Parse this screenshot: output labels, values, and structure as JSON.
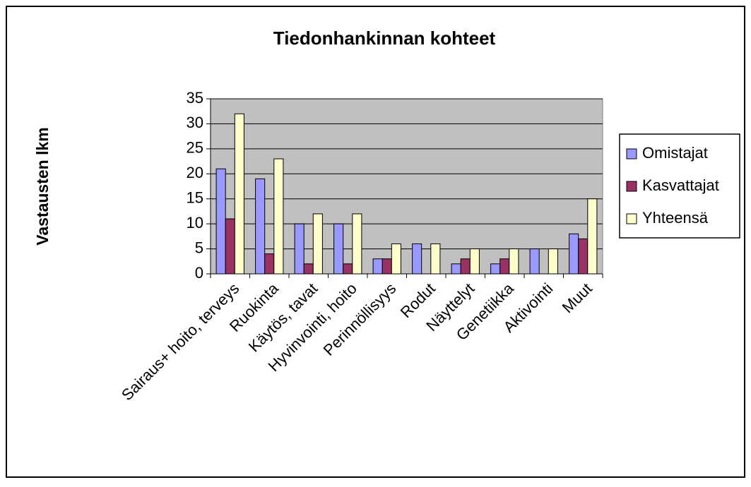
{
  "chart_data": {
    "type": "bar",
    "title": "Tiedonhankinnan kohteet",
    "y_label": "Vastausten lkm",
    "categories": [
      "Sairaus+ hoito, terveys",
      "Ruokinta",
      "Käytös, tavat",
      "Hyvinvointi, hoito",
      "Perinnöllisyys",
      "Rodut",
      "Näyttelyt",
      "Genetiikka",
      "Aktivointi",
      "Muut"
    ],
    "series": [
      {
        "name": "Omistajat",
        "color": "#9999ff",
        "values": [
          21,
          19,
          10,
          10,
          3,
          6,
          2,
          2,
          5,
          8
        ]
      },
      {
        "name": "Kasvattajat",
        "color": "#993366",
        "values": [
          11,
          4,
          2,
          2,
          3,
          0,
          3,
          3,
          0,
          7
        ]
      },
      {
        "name": "Yhteensä",
        "color": "#ffffcc",
        "values": [
          32,
          23,
          12,
          12,
          6,
          6,
          5,
          5,
          5,
          15
        ]
      }
    ],
    "ylim": [
      0,
      35
    ],
    "yticks": [
      0,
      5,
      10,
      15,
      20,
      25,
      30,
      35
    ],
    "grid": true,
    "legend": "right",
    "plot_background": "#c0c0c0"
  }
}
